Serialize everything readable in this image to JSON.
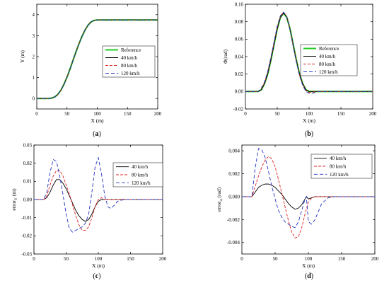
{
  "chart_data": [
    {
      "type": "line",
      "panel": "(a)",
      "xlabel": "X (m)",
      "ylabel": "Y (m)",
      "xlim": [
        0,
        200
      ],
      "ylim": [
        -0.5,
        4.5
      ],
      "xticks": [
        0,
        50,
        100,
        150,
        200
      ],
      "yticks": [
        0,
        1,
        2,
        3,
        4
      ],
      "ytick_labels": [
        "0",
        "1",
        "2",
        "3",
        "4"
      ],
      "legend_position": "center-right",
      "series": [
        {
          "name": "Reference",
          "color": "#22cc22",
          "dash": "solid",
          "x": [
            0,
            20,
            25,
            30,
            35,
            40,
            45,
            50,
            55,
            60,
            65,
            70,
            75,
            80,
            85,
            90,
            95,
            100,
            105,
            110,
            200
          ],
          "y": [
            0,
            0,
            0.02,
            0.08,
            0.2,
            0.4,
            0.68,
            1.02,
            1.41,
            1.83,
            2.24,
            2.63,
            2.98,
            3.28,
            3.51,
            3.66,
            3.73,
            3.75,
            3.75,
            3.75,
            3.75
          ]
        },
        {
          "name": "40 km/h",
          "color": "#000000",
          "dash": "solid",
          "x": [
            0,
            20,
            25,
            30,
            35,
            40,
            45,
            50,
            55,
            60,
            65,
            70,
            75,
            80,
            85,
            90,
            95,
            100,
            105,
            110,
            200
          ],
          "y": [
            0,
            0,
            0.02,
            0.08,
            0.2,
            0.4,
            0.68,
            1.02,
            1.41,
            1.83,
            2.24,
            2.63,
            2.98,
            3.28,
            3.51,
            3.66,
            3.73,
            3.75,
            3.75,
            3.75,
            3.75
          ]
        },
        {
          "name": "80 km/h",
          "color": "#e02020",
          "dash": "dash",
          "x": [
            0,
            20,
            25,
            30,
            35,
            40,
            45,
            50,
            55,
            60,
            65,
            70,
            75,
            80,
            85,
            90,
            95,
            100,
            105,
            110,
            200
          ],
          "y": [
            0,
            0,
            0.02,
            0.08,
            0.2,
            0.4,
            0.68,
            1.02,
            1.41,
            1.83,
            2.24,
            2.63,
            2.98,
            3.28,
            3.51,
            3.66,
            3.73,
            3.75,
            3.75,
            3.75,
            3.75
          ]
        },
        {
          "name": "120 km/h",
          "color": "#2030c0",
          "dash": "longdash",
          "x": [
            0,
            20,
            25,
            30,
            35,
            40,
            45,
            50,
            55,
            60,
            65,
            70,
            75,
            80,
            85,
            90,
            95,
            100,
            105,
            110,
            200
          ],
          "y": [
            0,
            0,
            0.02,
            0.08,
            0.2,
            0.4,
            0.68,
            1.02,
            1.41,
            1.83,
            2.24,
            2.63,
            2.98,
            3.28,
            3.51,
            3.66,
            3.73,
            3.75,
            3.75,
            3.75,
            3.75
          ]
        }
      ]
    },
    {
      "type": "line",
      "panel": "(b)",
      "xlabel": "X (m)",
      "ylabel": "Φ(rad)",
      "xlim": [
        0,
        200
      ],
      "ylim": [
        -0.02,
        0.1
      ],
      "xticks": [
        0,
        50,
        100,
        150,
        200
      ],
      "yticks": [
        -0.02,
        0,
        0.02,
        0.04,
        0.06,
        0.08,
        0.1
      ],
      "ytick_labels": [
        "-0.02",
        "0.00",
        "0.02",
        "0.04",
        "0.06",
        "0.08",
        "0.10"
      ],
      "legend_position": "right",
      "series": [
        {
          "name": "Reference",
          "color": "#22cc22",
          "dash": "solid",
          "x": [
            0,
            20,
            25,
            30,
            35,
            40,
            45,
            50,
            55,
            60,
            65,
            70,
            75,
            80,
            85,
            90,
            95,
            100,
            105,
            200
          ],
          "y": [
            0,
            0,
            0.002,
            0.009,
            0.02,
            0.036,
            0.054,
            0.072,
            0.085,
            0.09,
            0.085,
            0.072,
            0.054,
            0.036,
            0.02,
            0.009,
            0.002,
            0,
            0,
            0
          ]
        },
        {
          "name": "40 km/h",
          "color": "#000000",
          "dash": "solid",
          "x": [
            0,
            20,
            25,
            30,
            35,
            40,
            45,
            50,
            55,
            60,
            65,
            70,
            75,
            80,
            85,
            90,
            95,
            100,
            105,
            200
          ],
          "y": [
            0,
            0,
            0.002,
            0.009,
            0.02,
            0.036,
            0.054,
            0.072,
            0.085,
            0.09,
            0.085,
            0.072,
            0.054,
            0.036,
            0.02,
            0.009,
            0.002,
            0,
            0,
            0
          ]
        },
        {
          "name": "80 km/h",
          "color": "#e02020",
          "dash": "dash",
          "x": [
            0,
            20,
            25,
            30,
            35,
            40,
            45,
            50,
            55,
            60,
            65,
            70,
            75,
            80,
            85,
            90,
            95,
            100,
            105,
            110,
            200
          ],
          "y": [
            0,
            0,
            0.003,
            0.01,
            0.022,
            0.038,
            0.056,
            0.074,
            0.086,
            0.091,
            0.086,
            0.072,
            0.053,
            0.035,
            0.019,
            0.008,
            0.001,
            -0.001,
            -0.001,
            0,
            0
          ]
        },
        {
          "name": "120 km/h",
          "color": "#2030c0",
          "dash": "longdash",
          "x": [
            0,
            20,
            25,
            30,
            35,
            40,
            45,
            50,
            55,
            60,
            65,
            70,
            75,
            80,
            85,
            90,
            95,
            100,
            105,
            110,
            115,
            200
          ],
          "y": [
            0,
            0,
            0.004,
            0.011,
            0.023,
            0.039,
            0.057,
            0.075,
            0.087,
            0.091,
            0.085,
            0.071,
            0.052,
            0.034,
            0.018,
            0.007,
            0.0,
            -0.002,
            -0.002,
            -0.001,
            0,
            0
          ]
        }
      ]
    },
    {
      "type": "line",
      "panel": "(c)",
      "xlabel": "X (m)",
      "ylabel": "error",
      "ylabel_sub": "Y",
      "ylabel_unit": " (m)",
      "xlim": [
        0,
        200
      ],
      "ylim": [
        -0.03,
        0.03
      ],
      "xticks": [
        0,
        50,
        100,
        150,
        200
      ],
      "yticks": [
        -0.03,
        -0.02,
        -0.01,
        0,
        0.01,
        0.02,
        0.03
      ],
      "ytick_labels": [
        "-0.03",
        "-0.02",
        "-0.01",
        "0.00",
        "0.01",
        "0.02",
        "0.03"
      ],
      "legend_position": "top-right",
      "series": [
        {
          "name": "40 km/h",
          "color": "#000000",
          "dash": "solid",
          "x": [
            0,
            15,
            20,
            25,
            30,
            35,
            40,
            45,
            50,
            55,
            60,
            65,
            70,
            75,
            80,
            85,
            90,
            95,
            100,
            105,
            110,
            200
          ],
          "y": [
            0,
            0,
            0.001,
            0.004,
            0.008,
            0.011,
            0.011,
            0.009,
            0.006,
            0.002,
            -0.002,
            -0.006,
            -0.009,
            -0.011,
            -0.012,
            -0.011,
            -0.008,
            -0.004,
            -0.001,
            0,
            0,
            0
          ]
        },
        {
          "name": "80 km/h",
          "color": "#e02020",
          "dash": "dash",
          "x": [
            0,
            15,
            20,
            25,
            30,
            35,
            40,
            45,
            50,
            55,
            60,
            65,
            70,
            75,
            80,
            85,
            90,
            95,
            100,
            105,
            110,
            115,
            200
          ],
          "y": [
            0,
            0,
            0.002,
            0.008,
            0.013,
            0.016,
            0.016,
            0.013,
            0.008,
            0.003,
            -0.003,
            -0.009,
            -0.014,
            -0.017,
            -0.017,
            -0.015,
            -0.01,
            -0.004,
            0.0,
            0.001,
            0.0,
            0,
            0
          ]
        },
        {
          "name": "120 km/h",
          "color": "#2030c0",
          "dash": "longdash",
          "x": [
            0,
            15,
            20,
            25,
            30,
            35,
            40,
            45,
            50,
            55,
            60,
            65,
            70,
            75,
            80,
            85,
            90,
            95,
            100,
            105,
            110,
            115,
            120,
            125,
            130,
            140,
            200
          ],
          "y": [
            0,
            0,
            0.004,
            0.015,
            0.022,
            0.021,
            0.013,
            0.003,
            -0.008,
            -0.016,
            -0.018,
            -0.017,
            -0.016,
            -0.015,
            -0.013,
            -0.008,
            0.004,
            0.018,
            0.023,
            0.014,
            0.002,
            -0.004,
            -0.005,
            -0.003,
            -0.001,
            0,
            0
          ]
        }
      ]
    },
    {
      "type": "line",
      "panel": "(d)",
      "xlabel": "X (m)",
      "ylabel": "error",
      "ylabel_sub": "φ",
      "ylabel_unit": " (rad)",
      "xlim": [
        0,
        200
      ],
      "ylim": [
        -0.005,
        0.0045
      ],
      "xticks": [
        0,
        50,
        100,
        150,
        200
      ],
      "yticks": [
        -0.004,
        -0.002,
        0,
        0.002,
        0.004
      ],
      "ytick_labels": [
        "-0.004",
        "-0.002",
        "0.000",
        "0.002",
        "0.004"
      ],
      "legend_position": "top-right",
      "series": [
        {
          "name": "40 km/h",
          "color": "#000000",
          "dash": "solid",
          "x": [
            0,
            15,
            20,
            25,
            30,
            35,
            40,
            45,
            50,
            55,
            60,
            65,
            70,
            75,
            80,
            85,
            90,
            95,
            97,
            100,
            105,
            110,
            200
          ],
          "y": [
            0,
            0,
            0.0004,
            0.0008,
            0.001,
            0.0011,
            0.0011,
            0.001,
            0.0008,
            0.0005,
            0.0002,
            -0.0002,
            -0.0006,
            -0.0009,
            -0.0011,
            -0.001,
            -0.0007,
            -0.0002,
            0.0,
            -0.0002,
            -0.0001,
            0,
            0
          ]
        },
        {
          "name": "80 km/h",
          "color": "#e02020",
          "dash": "dash",
          "x": [
            0,
            15,
            20,
            25,
            30,
            35,
            40,
            45,
            50,
            55,
            60,
            65,
            70,
            75,
            80,
            85,
            90,
            95,
            100,
            105,
            110,
            115,
            120,
            200
          ],
          "y": [
            0,
            0,
            0.0009,
            0.0018,
            0.0026,
            0.0032,
            0.0035,
            0.0033,
            0.0026,
            0.0015,
            0.0003,
            -0.0009,
            -0.0021,
            -0.0031,
            -0.0036,
            -0.0035,
            -0.0027,
            -0.0015,
            -0.0005,
            -0.0001,
            0.0,
            0,
            0,
            0
          ]
        },
        {
          "name": "120 km/h",
          "color": "#2030c0",
          "dash": "longdash",
          "x": [
            0,
            15,
            20,
            25,
            30,
            35,
            40,
            45,
            50,
            55,
            60,
            65,
            70,
            75,
            80,
            85,
            90,
            95,
            97,
            100,
            105,
            110,
            115,
            120,
            130,
            140,
            200
          ],
          "y": [
            0,
            0,
            0.0025,
            0.0042,
            0.0041,
            0.0034,
            0.0022,
            0.0009,
            -0.0002,
            -0.0012,
            -0.0018,
            -0.0022,
            -0.0024,
            -0.0026,
            -0.0027,
            -0.0022,
            -0.0012,
            -0.0002,
            0.0,
            -0.0022,
            -0.0024,
            -0.002,
            -0.0013,
            -0.0006,
            -0.0001,
            0,
            0
          ]
        }
      ]
    }
  ],
  "captions": [
    "(a)",
    "(b)",
    "(c)",
    "(d)"
  ]
}
